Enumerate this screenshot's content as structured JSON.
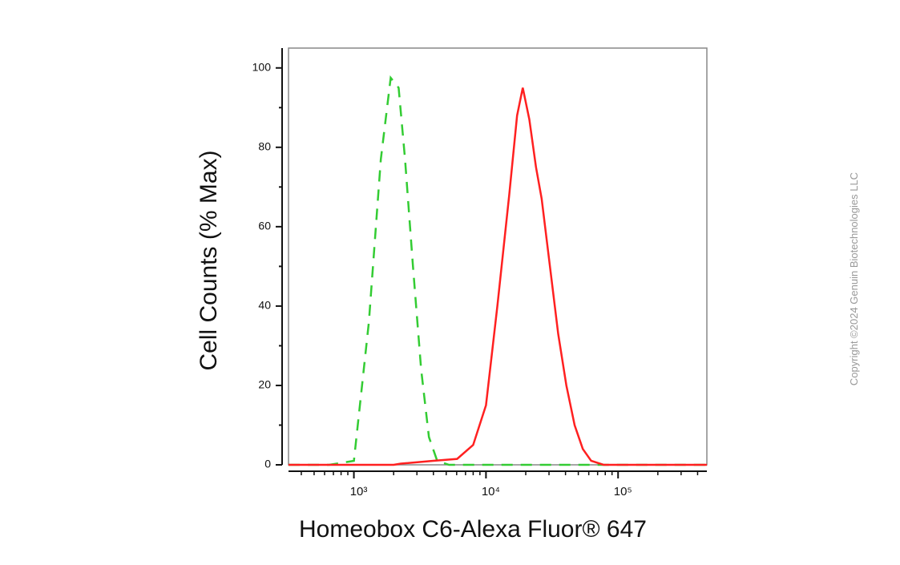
{
  "chart_data": {
    "type": "line",
    "x_label": "Homeobox C6-Alexa Fluor® 647",
    "y_label": "Cell Counts (% Max)",
    "annotation": "Copyright ©2024 Genuin Biotechnologies LLC",
    "xscale": "log",
    "xlim": [
      320,
      470000
    ],
    "ylim": [
      0,
      105
    ],
    "xticks": [
      {
        "value": 1000,
        "label": "10³"
      },
      {
        "value": 10000,
        "label": "10⁴"
      },
      {
        "value": 100000,
        "label": "10⁵"
      }
    ],
    "xminorticks": [
      400,
      500,
      600,
      700,
      800,
      900,
      2000,
      3000,
      4000,
      5000,
      6000,
      7000,
      8000,
      9000,
      20000,
      30000,
      40000,
      50000,
      60000,
      70000,
      80000,
      90000,
      200000,
      300000,
      400000
    ],
    "yticks": [
      0,
      20,
      40,
      60,
      80,
      100
    ],
    "yminorticks": [
      10,
      30,
      50,
      70,
      90
    ],
    "series": [
      {
        "color": "#33cc33",
        "dashed": true,
        "x": [
          320,
          650,
          1000,
          1300,
          1600,
          1900,
          2180,
          2440,
          2800,
          3230,
          3700,
          4270,
          5250,
          470000
        ],
        "values": [
          0,
          0,
          1,
          36,
          77,
          97.5,
          95,
          77,
          50,
          24,
          7,
          1,
          0,
          0
        ]
      },
      {
        "color": "#ff2020",
        "dashed": false,
        "x": [
          320,
          2000,
          2270,
          3990,
          6050,
          8000,
          10000,
          12200,
          15000,
          17200,
          19000,
          21300,
          23900,
          26400,
          30500,
          35200,
          40600,
          46900,
          54100,
          62500,
          77600,
          470000
        ],
        "values": [
          0,
          0,
          0.3,
          1,
          1.5,
          5,
          15,
          40,
          68,
          88,
          95,
          87,
          75,
          67,
          50,
          33,
          20,
          10,
          4,
          1,
          0,
          0
        ]
      }
    ]
  }
}
